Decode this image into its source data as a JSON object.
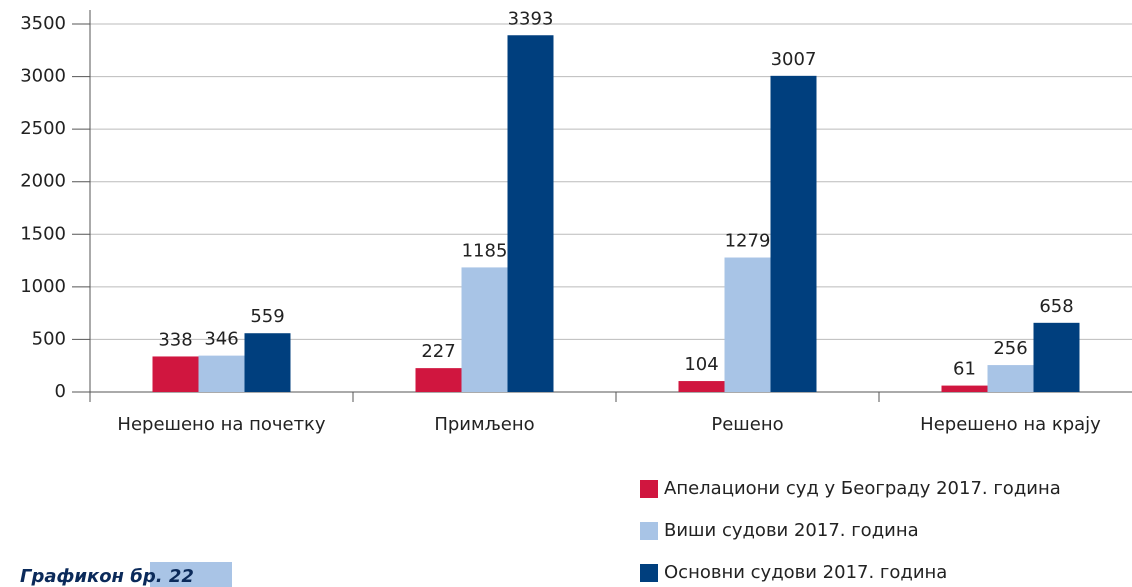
{
  "chart_data": {
    "type": "bar",
    "categories": [
      "Нерешено на почетку",
      "Примљено",
      "Решено",
      "Нерешено на крају"
    ],
    "series": [
      {
        "name": "Апелациони суд у Београду 2017. година",
        "color": "#d0163f",
        "values": [
          338,
          227,
          104,
          61
        ]
      },
      {
        "name": "Виши судови 2017. година",
        "color": "#a8c4e6",
        "values": [
          346,
          1185,
          1279,
          256
        ]
      },
      {
        "name": "Основни судови 2017. година",
        "color": "#003f7e",
        "values": [
          559,
          3393,
          3007,
          658
        ]
      }
    ],
    "ylim": [
      0,
      3500
    ],
    "yticks": [
      0,
      500,
      1000,
      1500,
      2000,
      2500,
      3000,
      3500
    ],
    "grid": true,
    "legend": "bottom-right",
    "caption": "Графикон бр. 22"
  }
}
